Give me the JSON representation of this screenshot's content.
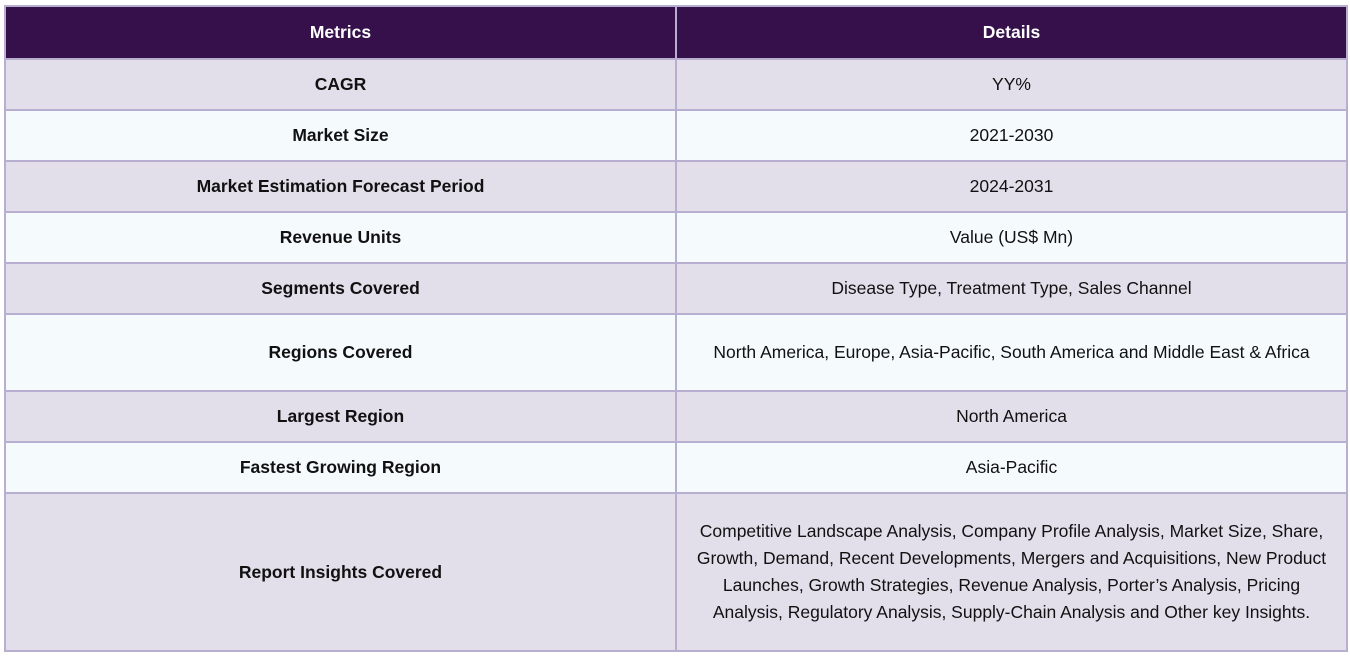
{
  "table": {
    "headers": [
      "Metrics",
      "Details"
    ],
    "rows": [
      {
        "metric": "CAGR",
        "details": "YY%"
      },
      {
        "metric": "Market Size",
        "details": "2021-2030"
      },
      {
        "metric": "Market Estimation Forecast Period",
        "details": "2024-2031"
      },
      {
        "metric": "Revenue Units",
        "details": "Value (US$ Mn)"
      },
      {
        "metric": "Segments Covered",
        "details": "Disease Type, Treatment Type, Sales Channel"
      },
      {
        "metric": "Regions Covered",
        "details": "North America, Europe, Asia-Pacific, South America and Middle East & Africa"
      },
      {
        "metric": "Largest Region",
        "details": "North America"
      },
      {
        "metric": "Fastest Growing Region",
        "details": "Asia-Pacific"
      },
      {
        "metric": "Report Insights Covered",
        "details": "Competitive Landscape Analysis, Company Profile Analysis, Market Size, Share, Growth, Demand, Recent Developments, Mergers and Acquisitions, New Product Launches, Growth Strategies, Revenue Analysis, Porter’s Analysis, Pricing Analysis, Regulatory Analysis, Supply-Chain Analysis and Other key Insights."
      }
    ]
  },
  "colors": {
    "header_bg": "#36104b",
    "row_odd_bg": "#e2dfeb",
    "row_even_bg": "#f5fafd",
    "border": "#b7aed0"
  }
}
